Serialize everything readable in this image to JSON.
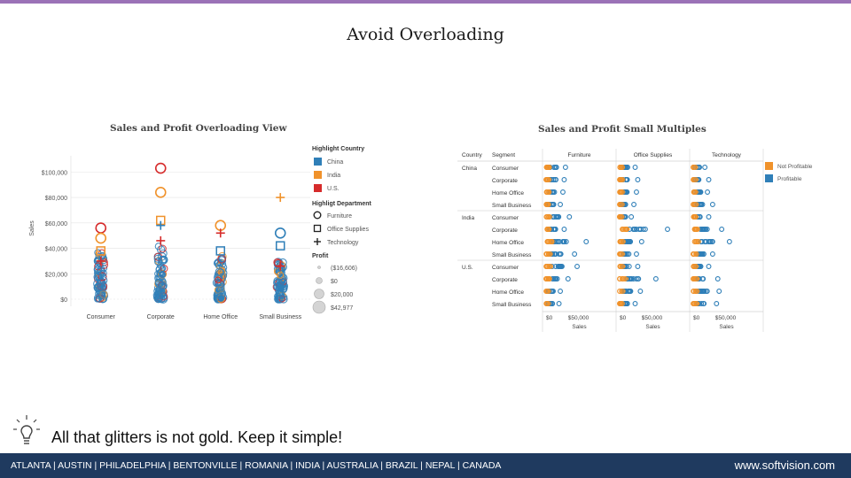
{
  "slide": {
    "title": "Avoid Overloading",
    "tip": "All that glitters is not gold. Keep it simple!",
    "footer_cities": "ATLANTA | AUSTIN | PHILADELPHIA | BENTONVILLE | ROMANIA | INDIA | AUSTRALIA | BRAZIL | NEPAL | CANADA",
    "footer_url": "www.softvision.com",
    "accent_color": "#9b72b7",
    "footer_color": "#1f3a5f",
    "tip_icon": "lightbulb-icon"
  },
  "chart_data": [
    {
      "type": "scatter",
      "title": "Sales and Profit Overloading View",
      "ylabel": "Sales",
      "categories": [
        "Consumer",
        "Corporate",
        "Home Office",
        "Small Business"
      ],
      "y_ticks": [
        "$100,000",
        "$80,000",
        "$60,000",
        "$40,000",
        "$20,000",
        "$0"
      ],
      "ylim": [
        0,
        110000
      ],
      "legend": {
        "country_title": "Highlight Country",
        "countries": [
          {
            "name": "China",
            "color": "#2f7fb8"
          },
          {
            "name": "India",
            "color": "#f0922b"
          },
          {
            "name": "U.S.",
            "color": "#d62b2b"
          }
        ],
        "department_title": "Highligt Department",
        "departments": [
          "Furniture",
          "Office Supplies",
          "Technology"
        ],
        "profit_title": "Profit",
        "profit_sizes": [
          "($16,606)",
          "$0",
          "$20,000",
          "$42,977"
        ]
      },
      "highlight_points": [
        {
          "segment": "Consumer",
          "sales": 56000,
          "country": "U.S.",
          "dept": "Furniture"
        },
        {
          "segment": "Consumer",
          "sales": 48000,
          "country": "India",
          "dept": "Furniture"
        },
        {
          "segment": "Consumer",
          "sales": 38000,
          "country": "India",
          "dept": "Office Supplies"
        },
        {
          "segment": "Consumer",
          "sales": 30000,
          "country": "U.S.",
          "dept": "Technology"
        },
        {
          "segment": "Corporate",
          "sales": 103000,
          "country": "U.S.",
          "dept": "Furniture"
        },
        {
          "segment": "Corporate",
          "sales": 84000,
          "country": "India",
          "dept": "Furniture"
        },
        {
          "segment": "Corporate",
          "sales": 62000,
          "country": "India",
          "dept": "Office Supplies"
        },
        {
          "segment": "Corporate",
          "sales": 58000,
          "country": "China",
          "dept": "Technology"
        },
        {
          "segment": "Corporate",
          "sales": 46000,
          "country": "U.S.",
          "dept": "Technology"
        },
        {
          "segment": "Home Office",
          "sales": 58000,
          "country": "India",
          "dept": "Furniture"
        },
        {
          "segment": "Home Office",
          "sales": 52000,
          "country": "U.S.",
          "dept": "Technology"
        },
        {
          "segment": "Home Office",
          "sales": 38000,
          "country": "China",
          "dept": "Office Supplies"
        },
        {
          "segment": "Small Business",
          "sales": 80000,
          "country": "India",
          "dept": "Technology"
        },
        {
          "segment": "Small Business",
          "sales": 52000,
          "country": "China",
          "dept": "Furniture"
        },
        {
          "segment": "Small Business",
          "sales": 42000,
          "country": "China",
          "dept": "Office Supplies"
        },
        {
          "segment": "Small Business",
          "sales": 26000,
          "country": "U.S.",
          "dept": "Technology"
        }
      ],
      "cluster_max_sales": [
        37000,
        42000,
        35000,
        30000
      ]
    },
    {
      "type": "scatter",
      "title": "Sales and Profit Small Multiples",
      "header_country": "Country",
      "header_segment": "Segment",
      "departments": [
        "Furniture",
        "Office Supplies",
        "Technology"
      ],
      "x_ticks": [
        "$0",
        "$50,000"
      ],
      "xlabel": "Sales",
      "xlim": [
        0,
        100000
      ],
      "legend": [
        {
          "name": "Not Profitable",
          "color": "#f0922b"
        },
        {
          "name": "Profitable",
          "color": "#2f7fb8"
        }
      ],
      "countries": [
        {
          "name": "China",
          "segments": [
            "Consumer",
            "Corporate",
            "Home Office",
            "Small Business"
          ]
        },
        {
          "name": "India",
          "segments": [
            "Consumer",
            "Corporate",
            "Home Office",
            "Small Business"
          ]
        },
        {
          "name": "U.S.",
          "segments": [
            "Consumer",
            "Corporate",
            "Home Office",
            "Small Business"
          ]
        }
      ],
      "max_sales": [
        [
          [
            30000,
            28000,
            26000,
            22000
          ],
          [
            24000,
            28000,
            26000,
            22000
          ],
          [
            18000,
            24000,
            22000,
            30000
          ]
        ],
        [
          [
            36000,
            28000,
            62000,
            44000
          ],
          [
            18000,
            74000,
            34000,
            26000
          ],
          [
            24000,
            44000,
            56000,
            30000
          ]
        ],
        [
          [
            48000,
            34000,
            22000,
            20000
          ],
          [
            28000,
            56000,
            32000,
            24000
          ],
          [
            24000,
            38000,
            40000,
            36000
          ]
        ]
      ]
    }
  ]
}
